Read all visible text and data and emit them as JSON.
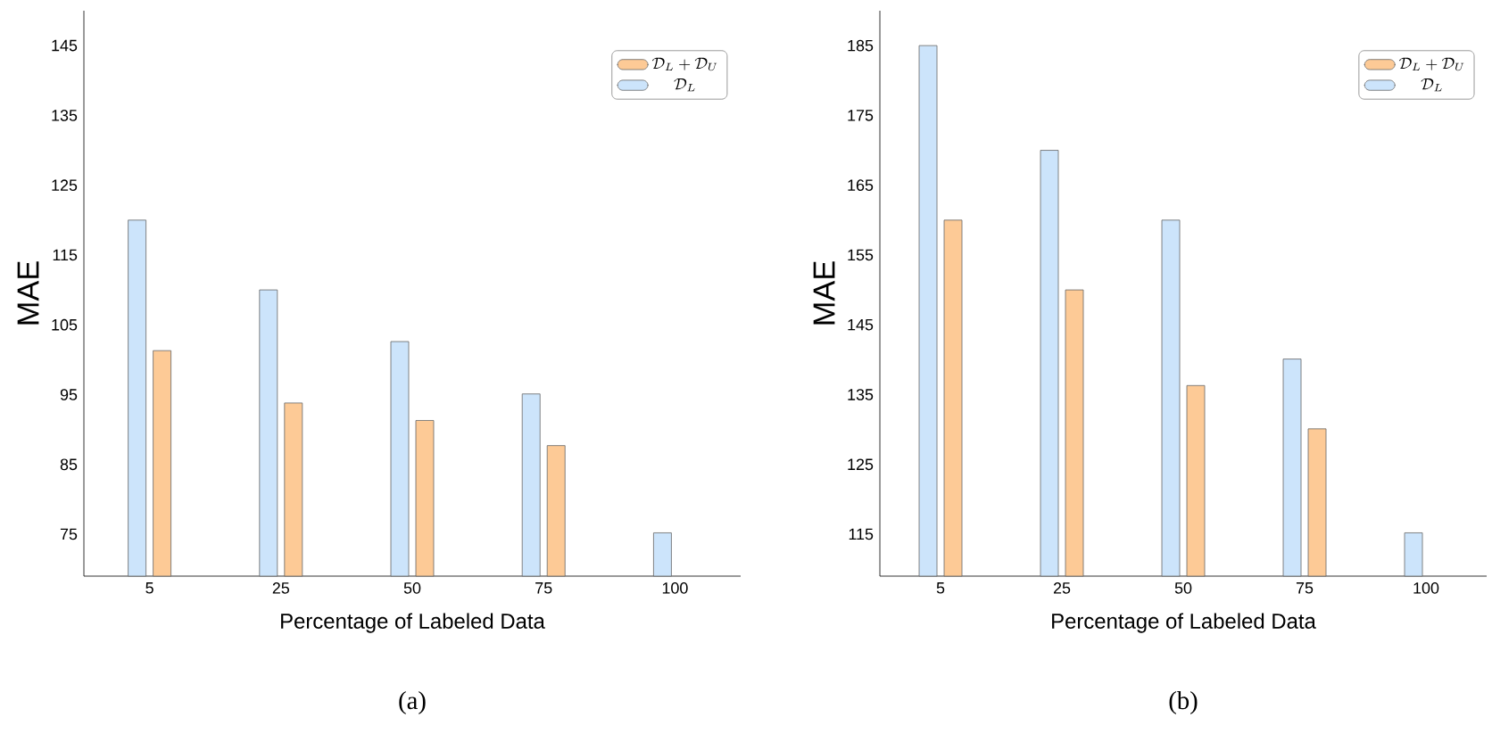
{
  "chart_data": [
    {
      "type": "bar",
      "xlabel": "Percentage of Labeled Data",
      "ylabel": "MAE",
      "categories": [
        "5",
        "25",
        "50",
        "75",
        "100"
      ],
      "ylim": [
        69,
        150
      ],
      "yticks": [
        75,
        85,
        95,
        105,
        115,
        125,
        135,
        145
      ],
      "legend": "top right",
      "annotations": [
        "(a)"
      ],
      "series": [
        {
          "name": "\\mathcal{D}_L",
          "color": "#cce4fb",
          "values": [
            120,
            110,
            102.6,
            95.1,
            75.2
          ]
        },
        {
          "name": "\\mathcal{D}_L+\\mathcal{D}_U",
          "color": "#fdca96",
          "values": [
            101.3,
            93.8,
            91.3,
            87.7,
            null
          ]
        }
      ]
    },
    {
      "type": "bar",
      "xlabel": "Percentage of Labeled Data",
      "ylabel": "MAE",
      "categories": [
        "5",
        "25",
        "50",
        "75",
        "100"
      ],
      "ylim": [
        109,
        190
      ],
      "yticks": [
        115,
        125,
        135,
        145,
        155,
        165,
        175,
        185
      ],
      "legend": "top right",
      "annotations": [
        "(b)"
      ],
      "series": [
        {
          "name": "\\mathcal{D}_L",
          "color": "#cce4fb",
          "values": [
            185,
            170,
            160,
            140.1,
            115.2
          ]
        },
        {
          "name": "\\mathcal{D}_L+\\mathcal{D}_U",
          "color": "#fdca96",
          "values": [
            160,
            150,
            136.3,
            130.1,
            null
          ]
        }
      ]
    }
  ]
}
